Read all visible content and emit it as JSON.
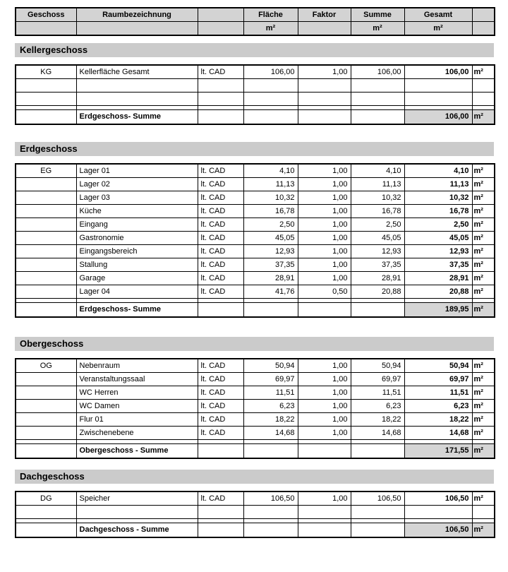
{
  "colors": {
    "header_bg": "#d3d3d3",
    "section_bg": "#cbcbcb",
    "sum_bg": "#d5d5d5",
    "border": "#000000"
  },
  "columns": [
    "geschoss",
    "raum",
    "quelle",
    "flaeche",
    "faktor",
    "summe",
    "gesamt",
    "einheit"
  ],
  "header": {
    "row1": [
      "Geschoss",
      "Raumbezeichnung",
      "",
      "Fläche",
      "Faktor",
      "Summe",
      "Gesamt",
      ""
    ],
    "row2": [
      "",
      "",
      "",
      "m²",
      "",
      "m²",
      "m²",
      ""
    ]
  },
  "sections": [
    {
      "title": "Kellergeschoss",
      "rows": [
        {
          "type": "data",
          "geschoss": "KG",
          "raum": "Kellerfläche Gesamt",
          "quelle": "lt. CAD",
          "flaeche": "106,00",
          "faktor": "1,00",
          "summe": "106,00",
          "gesamt": "106,00",
          "einheit": "m²"
        },
        {
          "type": "blank"
        },
        {
          "type": "blank"
        },
        {
          "type": "thin"
        },
        {
          "type": "sum",
          "label": "Erdgeschoss- Summe",
          "gesamt": "106,00",
          "einheit": "m²"
        }
      ]
    },
    {
      "title": "Erdgeschoss",
      "rows": [
        {
          "type": "data",
          "geschoss": "EG",
          "raum": "Lager 01",
          "quelle": "lt. CAD",
          "flaeche": "4,10",
          "faktor": "1,00",
          "summe": "4,10",
          "gesamt": "4,10",
          "einheit": "m²"
        },
        {
          "type": "data",
          "geschoss": "",
          "raum": "Lager 02",
          "quelle": "lt. CAD",
          "flaeche": "11,13",
          "faktor": "1,00",
          "summe": "11,13",
          "gesamt": "11,13",
          "einheit": "m²"
        },
        {
          "type": "data",
          "geschoss": "",
          "raum": "Lager 03",
          "quelle": "lt. CAD",
          "flaeche": "10,32",
          "faktor": "1,00",
          "summe": "10,32",
          "gesamt": "10,32",
          "einheit": "m²"
        },
        {
          "type": "data",
          "geschoss": "",
          "raum": "Küche",
          "quelle": "lt. CAD",
          "flaeche": "16,78",
          "faktor": "1,00",
          "summe": "16,78",
          "gesamt": "16,78",
          "einheit": "m²"
        },
        {
          "type": "data",
          "geschoss": "",
          "raum": "Eingang",
          "quelle": "lt. CAD",
          "flaeche": "2,50",
          "faktor": "1,00",
          "summe": "2,50",
          "gesamt": "2,50",
          "einheit": "m²"
        },
        {
          "type": "data",
          "geschoss": "",
          "raum": "Gastronomie",
          "quelle": "lt. CAD",
          "flaeche": "45,05",
          "faktor": "1,00",
          "summe": "45,05",
          "gesamt": "45,05",
          "einheit": "m²"
        },
        {
          "type": "data",
          "geschoss": "",
          "raum": "Eingangsbereich",
          "quelle": "lt. CAD",
          "flaeche": "12,93",
          "faktor": "1,00",
          "summe": "12,93",
          "gesamt": "12,93",
          "einheit": "m²"
        },
        {
          "type": "data",
          "geschoss": "",
          "raum": "Stallung",
          "quelle": "lt. CAD",
          "flaeche": "37,35",
          "faktor": "1,00",
          "summe": "37,35",
          "gesamt": "37,35",
          "einheit": "m²"
        },
        {
          "type": "data",
          "geschoss": "",
          "raum": "Garage",
          "quelle": "lt. CAD",
          "flaeche": "28,91",
          "faktor": "1,00",
          "summe": "28,91",
          "gesamt": "28,91",
          "einheit": "m²"
        },
        {
          "type": "data",
          "geschoss": "",
          "raum": "Lager 04",
          "quelle": "lt. CAD",
          "flaeche": "41,76",
          "faktor": "0,50",
          "summe": "20,88",
          "gesamt": "20,88",
          "einheit": "m²"
        },
        {
          "type": "thin"
        },
        {
          "type": "sum",
          "label": "Erdgeschoss- Summe",
          "gesamt": "189,95",
          "einheit": "m²"
        }
      ]
    },
    {
      "title": "Obergeschoss",
      "rows": [
        {
          "type": "data",
          "geschoss": "OG",
          "raum": "Nebenraum",
          "quelle": "lt. CAD",
          "flaeche": "50,94",
          "faktor": "1,00",
          "summe": "50,94",
          "gesamt": "50,94",
          "einheit": "m²"
        },
        {
          "type": "data",
          "geschoss": "",
          "raum": "Veranstaltungssaal",
          "quelle": "lt. CAD",
          "flaeche": "69,97",
          "faktor": "1,00",
          "summe": "69,97",
          "gesamt": "69,97",
          "einheit": "m²"
        },
        {
          "type": "data",
          "geschoss": "",
          "raum": "WC Herren",
          "quelle": "lt. CAD",
          "flaeche": "11,51",
          "faktor": "1,00",
          "summe": "11,51",
          "gesamt": "11,51",
          "einheit": "m²"
        },
        {
          "type": "data",
          "geschoss": "",
          "raum": "WC Damen",
          "quelle": "lt. CAD",
          "flaeche": "6,23",
          "faktor": "1,00",
          "summe": "6,23",
          "gesamt": "6,23",
          "einheit": "m²"
        },
        {
          "type": "data",
          "geschoss": "",
          "raum": "Flur 01",
          "quelle": "lt. CAD",
          "flaeche": "18,22",
          "faktor": "1,00",
          "summe": "18,22",
          "gesamt": "18,22",
          "einheit": "m²"
        },
        {
          "type": "data",
          "geschoss": "",
          "raum": "Zwischenebene",
          "quelle": "lt. CAD",
          "flaeche": "14,68",
          "faktor": "1,00",
          "summe": "14,68",
          "gesamt": "14,68",
          "einheit": "m²"
        },
        {
          "type": "thin"
        },
        {
          "type": "sum",
          "label": "Obergeschoss - Summe",
          "gesamt": "171,55",
          "einheit": "m²"
        }
      ]
    },
    {
      "title": "Dachgeschoss",
      "rows": [
        {
          "type": "data",
          "geschoss": "DG",
          "raum": "Speicher",
          "quelle": "lt. CAD",
          "flaeche": "106,50",
          "faktor": "1,00",
          "summe": "106,50",
          "gesamt": "106,50",
          "einheit": "m²"
        },
        {
          "type": "blank"
        },
        {
          "type": "thin"
        },
        {
          "type": "sum",
          "label": "Dachgeschoss - Summe",
          "gesamt": "106,50",
          "einheit": "m²"
        }
      ]
    }
  ]
}
